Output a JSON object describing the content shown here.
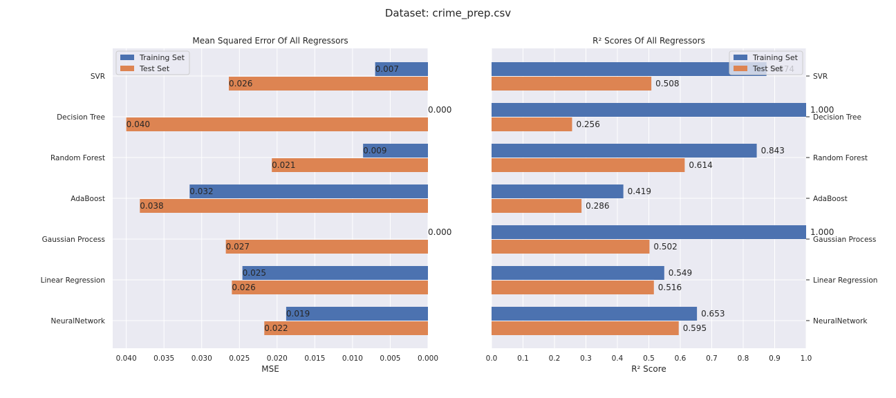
{
  "figure": {
    "title": "Dataset: crime_prep.csv"
  },
  "charts": [
    {
      "type": "bar",
      "title": "Mean Squared Error Of All Regressors",
      "xlabel": "MSE",
      "orientation": "horizontal",
      "x_inverted": true,
      "xlim": [
        0,
        0.0418
      ],
      "ticks": [
        "0.040",
        "0.035",
        "0.030",
        "0.025",
        "0.020",
        "0.015",
        "0.010",
        "0.005",
        "0.000"
      ],
      "tick_values": [
        0.04,
        0.035,
        0.03,
        0.025,
        0.02,
        0.015,
        0.01,
        0.005,
        0.0
      ],
      "category_labels_side": "left",
      "legend_position": "top-left",
      "categories": [
        "SVR",
        "Decision Tree",
        "Random Forest",
        "AdaBoost",
        "Gaussian Process",
        "Linear Regression",
        "NeuralNetwork"
      ],
      "series": [
        {
          "name": "Training Set",
          "color": "#4c72b0",
          "values": [
            0.007,
            0.0,
            0.0086,
            0.0316,
            0.0,
            0.0246,
            0.0188
          ],
          "labels": [
            "0.007",
            "0.000",
            "0.009",
            "0.032",
            "0.000",
            "0.025",
            "0.019"
          ]
        },
        {
          "name": "Test Set",
          "color": "#dd8452",
          "values": [
            0.0264,
            0.04,
            0.0207,
            0.0382,
            0.0268,
            0.026,
            0.0217
          ],
          "labels": [
            "0.026",
            "0.040",
            "0.021",
            "0.038",
            "0.027",
            "0.026",
            "0.022"
          ]
        }
      ]
    },
    {
      "type": "bar",
      "title": "R² Scores Of All Regressors",
      "xlabel": "R² Score",
      "orientation": "horizontal",
      "x_inverted": false,
      "xlim": [
        0,
        1.0
      ],
      "ticks": [
        "0.0",
        "0.1",
        "0.2",
        "0.3",
        "0.4",
        "0.5",
        "0.6",
        "0.7",
        "0.8",
        "0.9",
        "1.0"
      ],
      "tick_values": [
        0.0,
        0.1,
        0.2,
        0.3,
        0.4,
        0.5,
        0.6,
        0.7,
        0.8,
        0.9,
        1.0
      ],
      "category_labels_side": "right",
      "legend_position": "top-right",
      "categories": [
        "SVR",
        "Decision Tree",
        "Random Forest",
        "AdaBoost",
        "Gaussian Process",
        "Linear Regression",
        "NeuralNetwork"
      ],
      "series": [
        {
          "name": "Training Set",
          "color": "#4c72b0",
          "values": [
            0.874,
            1.0,
            0.843,
            0.419,
            1.0,
            0.549,
            0.653
          ],
          "labels": [
            "0.874",
            "1.000",
            "0.843",
            "0.419",
            "1.000",
            "0.549",
            "0.653"
          ]
        },
        {
          "name": "Test Set",
          "color": "#dd8452",
          "values": [
            0.508,
            0.256,
            0.614,
            0.286,
            0.502,
            0.516,
            0.595
          ],
          "labels": [
            "0.508",
            "0.256",
            "0.614",
            "0.286",
            "0.502",
            "0.516",
            "0.595"
          ]
        }
      ]
    }
  ],
  "chart_data": [
    {
      "type": "bar",
      "title": "Mean Squared Error Of All Regressors",
      "xlabel": "MSE",
      "ylabel": "",
      "xlim": [
        0.0418,
        0
      ],
      "categories": [
        "SVR",
        "Decision Tree",
        "Random Forest",
        "AdaBoost",
        "Gaussian Process",
        "Linear Regression",
        "NeuralNetwork"
      ],
      "series": [
        {
          "name": "Training Set",
          "values": [
            0.007,
            0.0,
            0.009,
            0.032,
            0.0,
            0.025,
            0.019
          ]
        },
        {
          "name": "Test Set",
          "values": [
            0.026,
            0.04,
            0.021,
            0.038,
            0.027,
            0.026,
            0.022
          ]
        }
      ],
      "grid": true,
      "legend": "top-left"
    },
    {
      "type": "bar",
      "title": "R² Scores Of All Regressors",
      "xlabel": "R² Score",
      "ylabel": "",
      "xlim": [
        0,
        1.0
      ],
      "categories": [
        "SVR",
        "Decision Tree",
        "Random Forest",
        "AdaBoost",
        "Gaussian Process",
        "Linear Regression",
        "NeuralNetwork"
      ],
      "series": [
        {
          "name": "Training Set",
          "values": [
            0.874,
            1.0,
            0.843,
            0.419,
            1.0,
            0.549,
            0.653
          ]
        },
        {
          "name": "Test Set",
          "values": [
            0.508,
            0.256,
            0.614,
            0.286,
            0.502,
            0.516,
            0.595
          ]
        }
      ],
      "grid": true,
      "legend": "top-right"
    }
  ]
}
